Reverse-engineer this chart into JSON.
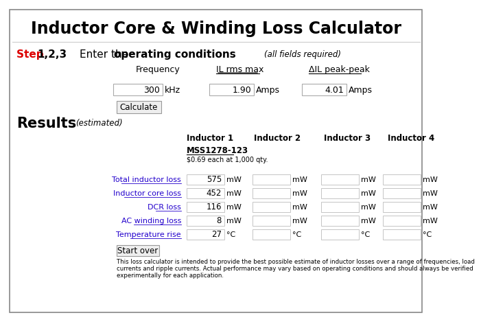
{
  "title": "Inductor Core & Winding Loss Calculator",
  "bg_color": "#ffffff",
  "border_color": "#888888",
  "step_red": "#dd0000",
  "blue_link": "#2200cc",
  "step_word": "Step ",
  "step_nums": "1,2,3",
  "step_enter": "Enter the ",
  "step_bold": "operating conditions",
  "step_note": "(all fields required)",
  "freq_label": "Frequency",
  "il_label": "IL rms max",
  "dil_label": "ΔIL peak-peak",
  "freq_val": "300",
  "freq_unit": "kHz",
  "il_val": "1.90",
  "il_unit": "Amps",
  "dil_val": "4.01",
  "dil_unit": "Amps",
  "calc_btn": "Calculate",
  "results_label": "Results",
  "results_note": "(estimated)",
  "ind_headers": [
    "Inductor 1",
    "Inductor 2",
    "Inductor 3",
    "Inductor 4"
  ],
  "ind1_name": "MSS1278-123",
  "ind1_price": "$0.69 each at 1,000 qty.",
  "row_labels": [
    "Total inductor loss",
    "Inductor core loss",
    "DCR loss",
    "AC winding loss",
    "Temperature rise"
  ],
  "row_units": [
    "mW",
    "mW",
    "mW",
    "mW",
    "°C"
  ],
  "ind1_values": [
    "575",
    "452",
    "116",
    "8",
    "27"
  ],
  "start_btn": "Start over",
  "disclaimer": "This loss calculator is intended to provide the best possible estimate of inductor losses over a range of frequencies, load\ncurrents and ripple currents. Actual performance may vary based on operating conditions and should always be verified\nexperimentally for each application."
}
